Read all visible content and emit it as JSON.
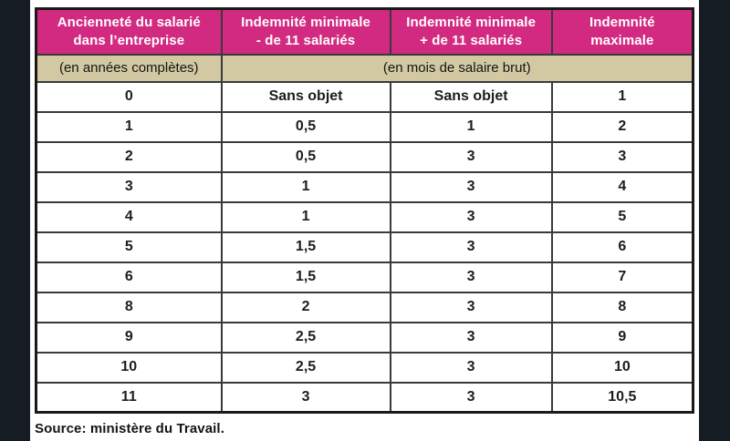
{
  "colors": {
    "page_background": "#161c24",
    "panel_background": "#ffffff",
    "header_background": "#d22a80",
    "header_text": "#ffffff",
    "units_row_background": "#d2c8a2",
    "border": "#3a3a3a",
    "body_text": "#1d1d1d"
  },
  "chart_data": {
    "type": "table",
    "title": "",
    "columns": [
      "Ancienneté du salarié\ndans l’entreprise",
      "Indemnité minimale\n- de 11 salariés",
      "Indemnité minimale\n+ de 11 salariés",
      "Indemnité\nmaximale"
    ],
    "units_row": {
      "col1": "(en années complètes)",
      "col2_4": "(en mois de salaire brut)"
    },
    "rows": [
      [
        "0",
        "Sans objet",
        "Sans objet",
        "1"
      ],
      [
        "1",
        "0,5",
        "1",
        "2"
      ],
      [
        "2",
        "0,5",
        "3",
        "3"
      ],
      [
        "3",
        "1",
        "3",
        "4"
      ],
      [
        "4",
        "1",
        "3",
        "5"
      ],
      [
        "5",
        "1,5",
        "3",
        "6"
      ],
      [
        "6",
        "1,5",
        "3",
        "7"
      ],
      [
        "8",
        "2",
        "3",
        "8"
      ],
      [
        "9",
        "2,5",
        "3",
        "9"
      ],
      [
        "10",
        "2,5",
        "3",
        "10"
      ],
      [
        "11",
        "3",
        "3",
        "10,5"
      ]
    ]
  },
  "footer": {
    "source": "Source: ministère du Travail."
  }
}
